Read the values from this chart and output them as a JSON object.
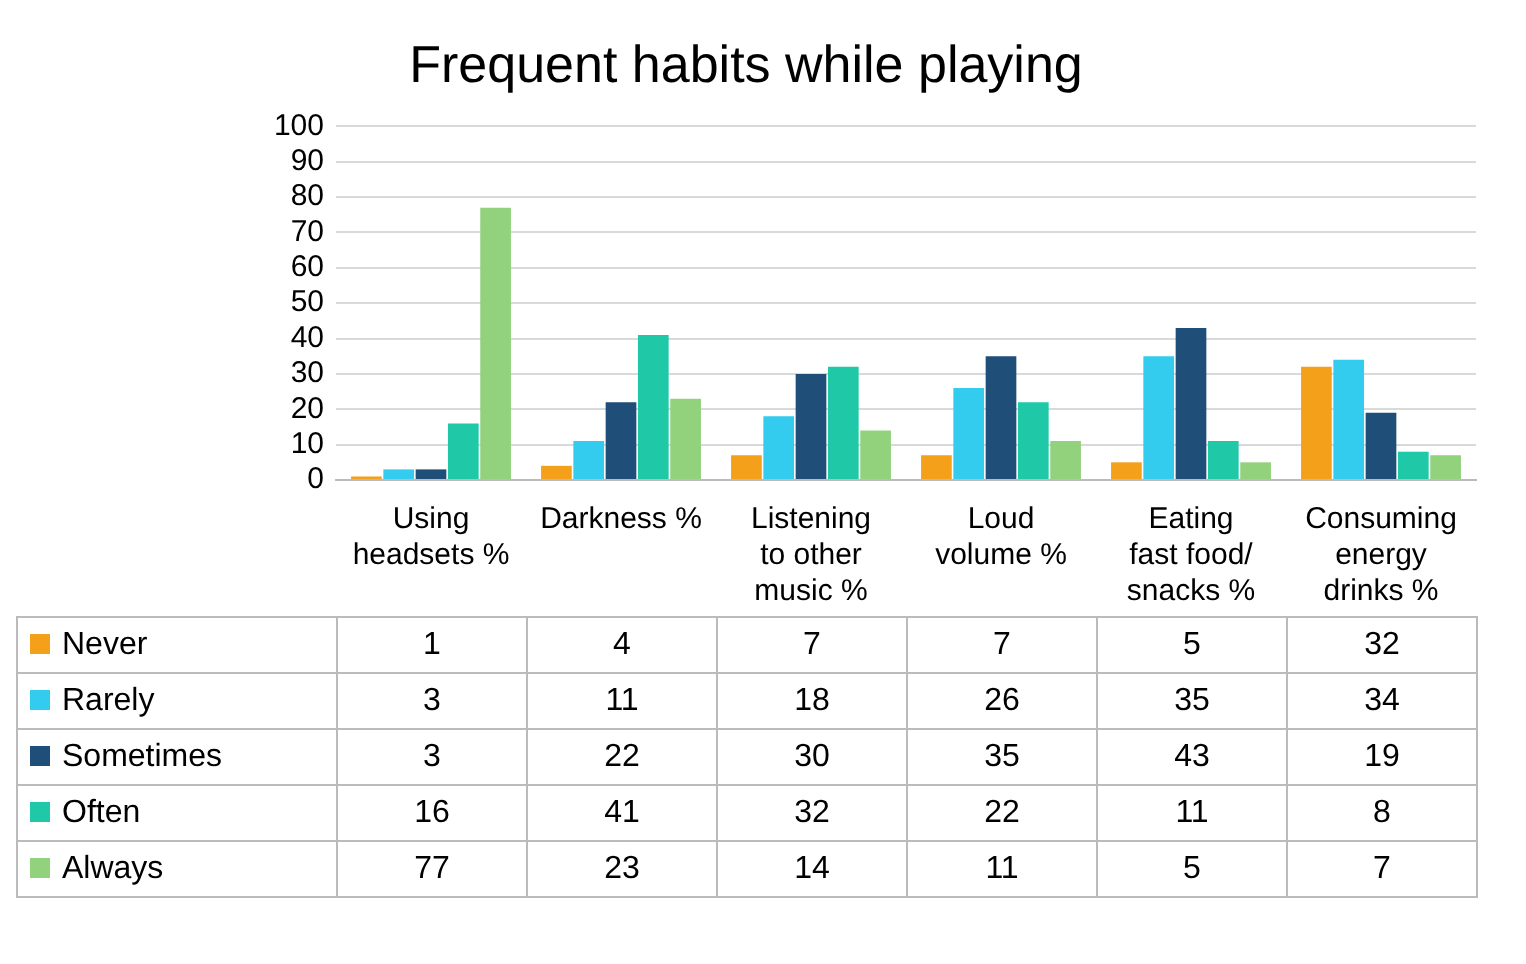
{
  "chart_data": {
    "type": "bar",
    "title": "Frequent habits while playing",
    "categories": [
      "Using headsets %",
      "Darkness %",
      "Listening to  other music %",
      "Loud volume %",
      "Eating fast food/ snacks %",
      "Consuming energy drinks %"
    ],
    "series": [
      {
        "name": "Never",
        "color": "#f5a01a",
        "values": [
          1,
          4,
          7,
          7,
          5,
          32
        ]
      },
      {
        "name": "Rarely",
        "color": "#33ccee",
        "values": [
          3,
          11,
          18,
          26,
          35,
          34
        ]
      },
      {
        "name": "Sometimes",
        "color": "#1f4e79",
        "values": [
          3,
          22,
          30,
          35,
          43,
          19
        ]
      },
      {
        "name": "Often",
        "color": "#1fc9a8",
        "values": [
          16,
          41,
          32,
          22,
          11,
          8
        ]
      },
      {
        "name": "Always",
        "color": "#92d27c",
        "values": [
          77,
          23,
          14,
          11,
          5,
          7
        ]
      }
    ],
    "ylim": [
      0,
      100
    ],
    "yticks": [
      0,
      10,
      20,
      30,
      40,
      50,
      60,
      70,
      80,
      90,
      100
    ],
    "grid": "y",
    "data_labels": true,
    "legend": "bottom"
  }
}
